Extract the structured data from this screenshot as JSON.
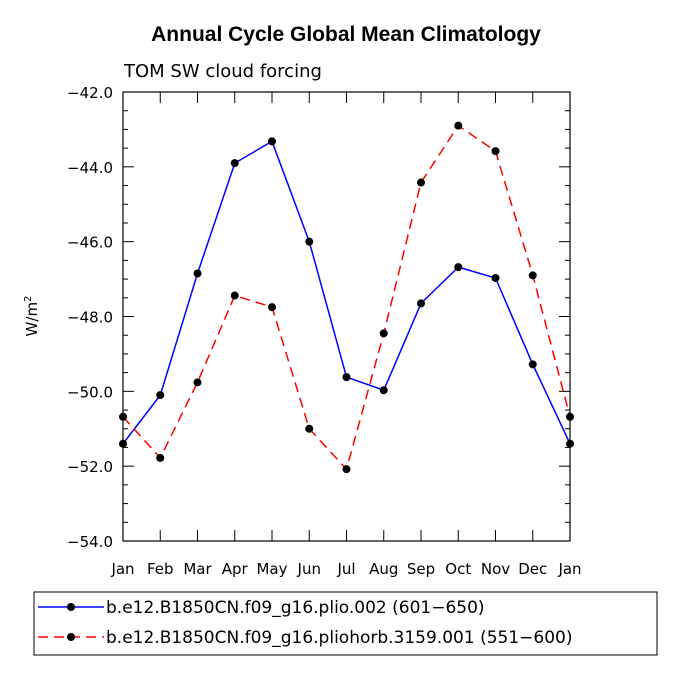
{
  "chart_data": {
    "type": "line",
    "title": "Annual Cycle Global Mean Climatology",
    "subtitle": "TOM SW cloud forcing",
    "xlabel": "",
    "ylabel": "W/m",
    "ylabel_superscript": "2",
    "categories": [
      "Jan",
      "Feb",
      "Mar",
      "Apr",
      "May",
      "Jun",
      "Jul",
      "Aug",
      "Sep",
      "Oct",
      "Nov",
      "Dec",
      "Jan"
    ],
    "ylim": [
      -54.0,
      -42.0
    ],
    "yticks": [
      -54.0,
      -52.0,
      -50.0,
      -48.0,
      -46.0,
      -44.0,
      -42.0
    ],
    "ytick_labels": [
      "−54.0",
      "−52.0",
      "−50.0",
      "−48.0",
      "−46.0",
      "−44.0",
      "−42.0"
    ],
    "grid": false,
    "legend_position": "bottom",
    "series": [
      {
        "name": "b.e12.B1850CN.f09_g16.plio.002 (601−650)",
        "color": "#0000ff",
        "dash": "solid",
        "values": [
          -51.4,
          -50.1,
          -46.85,
          -43.9,
          -43.32,
          -46.0,
          -49.62,
          -49.97,
          -47.65,
          -46.68,
          -46.97,
          -49.28,
          -51.4
        ]
      },
      {
        "name": "b.e12.B1850CN.f09_g16.pliohorb.3159.001 (551−600)",
        "color": "#ff0000",
        "dash": "dashed",
        "values": [
          -50.68,
          -51.78,
          -49.76,
          -47.44,
          -47.75,
          -51.0,
          -52.08,
          -48.45,
          -44.42,
          -42.9,
          -43.58,
          -46.9,
          -50.68
        ]
      }
    ]
  }
}
